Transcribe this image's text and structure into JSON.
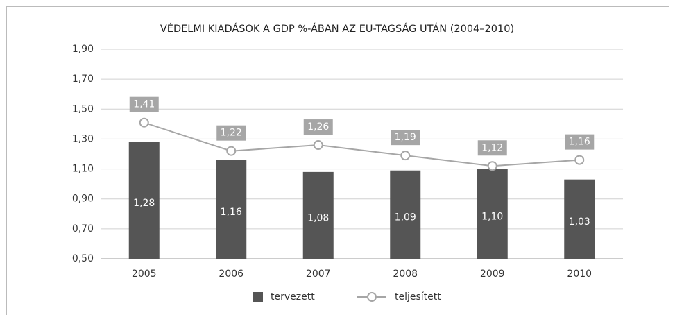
{
  "chart_data": {
    "type": "bar",
    "title": "VÉDELMI KIADÁSOK A GDP %-ÁBAN AZ EU-TAGSÁG UTÁN (2004–2010)",
    "categories": [
      "2005",
      "2006",
      "2007",
      "2008",
      "2009",
      "2010"
    ],
    "series": [
      {
        "name": "tervezett",
        "type": "bar",
        "color": "#555555",
        "values": [
          1.28,
          1.16,
          1.08,
          1.09,
          1.1,
          1.03
        ],
        "value_labels": [
          "1,28",
          "1,16",
          "1,08",
          "1,09",
          "1,10",
          "1,03"
        ]
      },
      {
        "name": "teljesített",
        "type": "line",
        "color": "#a6a6a6",
        "values": [
          1.41,
          1.22,
          1.26,
          1.19,
          1.12,
          1.16
        ],
        "value_labels": [
          "1,41",
          "1,22",
          "1,26",
          "1,19",
          "1,12",
          "1,16"
        ]
      }
    ],
    "ylim": [
      0.5,
      1.9
    ],
    "yticks": [
      {
        "value": 0.5,
        "label": "0,50"
      },
      {
        "value": 0.7,
        "label": "0,70"
      },
      {
        "value": 0.9,
        "label": "0,90"
      },
      {
        "value": 1.1,
        "label": "1,10"
      },
      {
        "value": 1.3,
        "label": "1,30"
      },
      {
        "value": 1.5,
        "label": "1,50"
      },
      {
        "value": 1.7,
        "label": "1,70"
      },
      {
        "value": 1.9,
        "label": "1,90"
      }
    ],
    "grid": true,
    "legend": "bottom"
  }
}
